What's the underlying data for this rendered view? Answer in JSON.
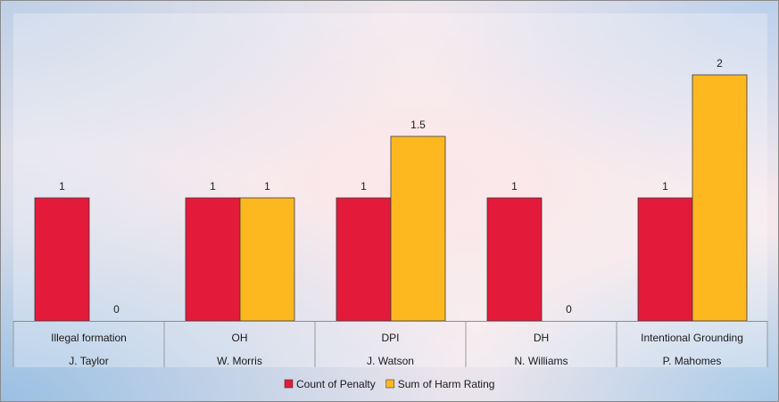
{
  "chart_data": {
    "type": "bar",
    "categories": [
      [
        "Illegal formation",
        "J. Taylor"
      ],
      [
        "OH",
        "W. Morris"
      ],
      [
        "DPI",
        "J. Watson"
      ],
      [
        "DH",
        "N. Williams"
      ],
      [
        "Intentional Grounding",
        "P. Mahomes"
      ]
    ],
    "series": [
      {
        "name": "Count of Penalty",
        "color": "#e41a3a",
        "values": [
          1,
          1,
          1,
          1,
          1
        ]
      },
      {
        "name": "Sum of Harm Rating",
        "color": "#fdb820",
        "values": [
          0,
          1,
          1.5,
          0,
          2
        ]
      }
    ],
    "ylim": [
      0,
      2.5
    ],
    "data_labels": true,
    "grid": false,
    "legend_position": "bottom"
  }
}
